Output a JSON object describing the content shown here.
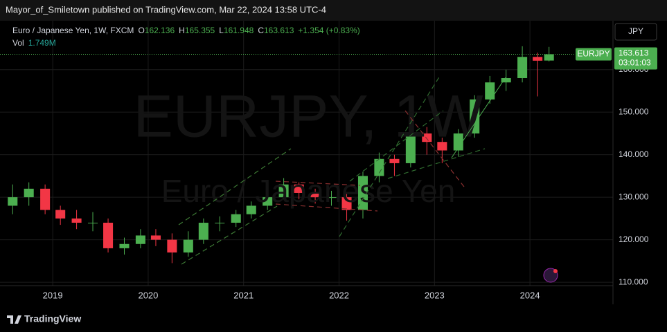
{
  "header": {
    "publisher_line": "Mayor_of_Smiletown published on TradingView.com, Mar 22, 2024 13:58 UTC-4"
  },
  "legend": {
    "symbol": "Euro / Japanese Yen, 1W, FXCM",
    "open_label": "O",
    "high_label": "H",
    "low_label": "L",
    "close_label": "C",
    "change": "+1.354 (+0.83%)",
    "volume_label": "Vol",
    "volume": "1.749M"
  },
  "watermark": {
    "symbol": "EURJPY, 1W",
    "description": "Euro / Japanese Yen"
  },
  "currency_button": "JPY",
  "price_tag": {
    "symbol": "EURJPY",
    "countdown": "03:01:03"
  },
  "footer": {
    "brand": "TradingView"
  },
  "chart_data": {
    "type": "candlestick",
    "x": [
      2018.58,
      2018.75,
      2018.92,
      2019.08,
      2019.25,
      2019.42,
      2019.58,
      2019.75,
      2019.92,
      2020.08,
      2020.25,
      2020.42,
      2020.58,
      2020.75,
      2020.92,
      2021.08,
      2021.25,
      2021.42,
      2021.58,
      2021.75,
      2021.92,
      2022.08,
      2022.25,
      2022.42,
      2022.58,
      2022.75,
      2022.92,
      2023.08,
      2023.25,
      2023.42,
      2023.58,
      2023.75,
      2023.92,
      2024.08,
      2024.2
    ],
    "open": [
      128,
      130,
      132,
      127,
      125,
      124,
      124,
      118,
      119,
      121,
      120,
      117,
      120,
      124,
      124,
      126,
      128,
      130,
      133,
      131,
      130,
      130,
      127,
      135,
      139,
      138,
      145,
      143,
      141,
      145,
      153,
      157,
      158,
      163,
      162.136
    ],
    "high": [
      133,
      133.5,
      133,
      128,
      127,
      126.5,
      125,
      120.5,
      122.5,
      122.5,
      121.5,
      122,
      125,
      125.5,
      127,
      129,
      131,
      134.5,
      133.5,
      132,
      131.5,
      131,
      136,
      140.5,
      140,
      148,
      146.5,
      144,
      146,
      154,
      158.5,
      160,
      165.5,
      164,
      165.355
    ],
    "low": [
      126,
      128,
      126,
      123.5,
      122.5,
      122,
      117,
      116.5,
      118,
      118.5,
      114.5,
      116,
      119,
      122,
      123,
      125,
      127,
      129.5,
      129.5,
      128.5,
      128,
      124.5,
      125,
      133.5,
      135,
      137,
      140,
      138,
      139.5,
      144,
      152,
      155,
      157,
      153.7,
      161.948
    ],
    "close": [
      130,
      132,
      127,
      125,
      124,
      124,
      118,
      119,
      121,
      120,
      117,
      120,
      124,
      124,
      126,
      128,
      130,
      133,
      131,
      130,
      130,
      127,
      135,
      139,
      138,
      145,
      143,
      141,
      145,
      153,
      157,
      158,
      163,
      162.1,
      163.613
    ],
    "up_color": "#4caf50",
    "down_color": "#f23645",
    "xlim": [
      2018.52,
      2024.87
    ],
    "xticks": [
      2019,
      2020,
      2021,
      2022,
      2023,
      2024
    ],
    "ylim": [
      109.2,
      171.5
    ],
    "yticks": [
      {
        "value": 110,
        "label": "110.000"
      },
      {
        "value": 120,
        "label": "120.000"
      },
      {
        "value": 130,
        "label": "130.000"
      },
      {
        "value": 140,
        "label": "140.000"
      },
      {
        "value": 150,
        "label": "150.000"
      },
      {
        "value": 160,
        "label": "160.000"
      }
    ],
    "grid": true
  }
}
